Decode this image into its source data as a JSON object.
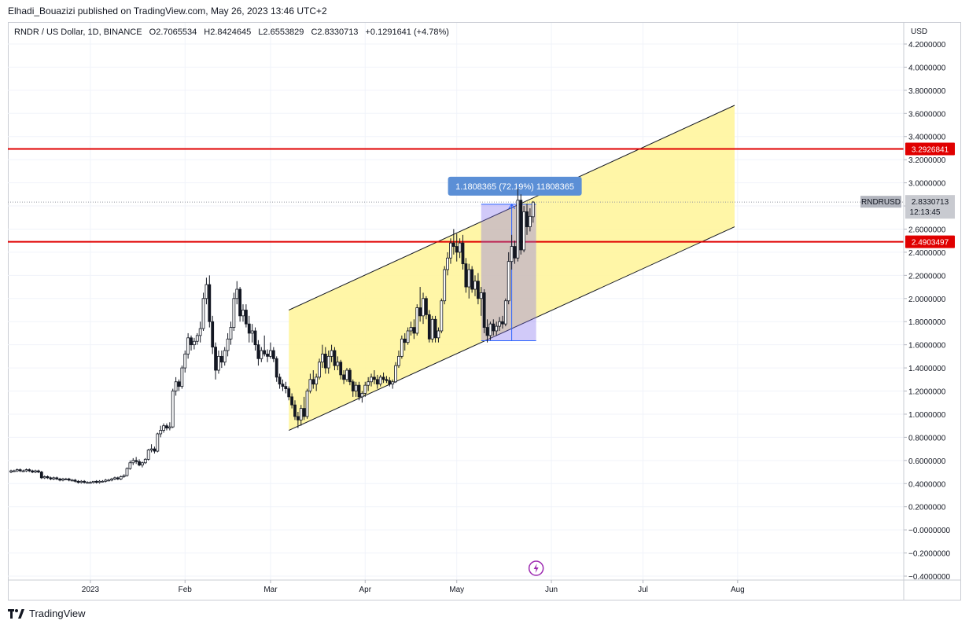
{
  "header": {
    "published_line": "Elhadi_Bouazizi published on TradingView.com, May 26, 2023 13:46 UTC+2"
  },
  "legend": {
    "symbol": "RNDR / US Dollar, 1D, BINANCE",
    "open": "O2.7065534",
    "high": "H2.8424645",
    "low": "L2.6553829",
    "close": "C2.8330713",
    "change": "+0.1291641 (+4.78%)"
  },
  "footer": {
    "brand": "TradingView"
  },
  "chart_data": {
    "type": "candlestick",
    "currency_label": "USD",
    "y_axis_labels": [
      "4.2000000",
      "4.0000000",
      "3.8000000",
      "3.6000000",
      "3.4000000",
      "3.2000000",
      "3.0000000",
      "2.8000000",
      "2.6000000",
      "2.4000000",
      "2.2000000",
      "2.0000000",
      "1.8000000",
      "1.6000000",
      "1.4000000",
      "1.2000000",
      "1.0000000",
      "0.8000000",
      "0.6000000",
      "0.4000000",
      "0.2000000",
      "−0.0000000",
      "−0.2000000",
      "−0.4000000"
    ],
    "y_axis_values": [
      4.2,
      4.0,
      3.8,
      3.6,
      3.4,
      3.2,
      3.0,
      2.8,
      2.6,
      2.4,
      2.2,
      2.0,
      1.8,
      1.6,
      1.4,
      1.2,
      1.0,
      0.8,
      0.6,
      0.4,
      0.2,
      0.0,
      -0.2,
      -0.4
    ],
    "x_axis_labels": [
      "2023",
      "Feb",
      "Mar",
      "Apr",
      "May",
      "Jun",
      "Jul",
      "Aug"
    ],
    "x_axis_dates": [
      "2023-01-01",
      "2023-02-01",
      "2023-03-01",
      "2023-04-01",
      "2023-05-01",
      "2023-06-01",
      "2023-07-01",
      "2023-08-01"
    ],
    "range": {
      "start": "2022-12-06",
      "end": "2023-08-25",
      "ymin": -0.4,
      "ymax": 4.25
    },
    "horizontal_lines": [
      {
        "value": 3.2926841,
        "label": "3.2926841",
        "color": "#e00000"
      },
      {
        "value": 2.4903497,
        "label": "2.4903497",
        "color": "#e00000"
      }
    ],
    "last_price": {
      "value": 2.8330713,
      "label": "2.8330713",
      "symbol_tag": "RNDRUSD",
      "countdown": "12:13:45"
    },
    "channel": {
      "start_date": "2023-03-07",
      "end_date": "2023-07-31",
      "upper_start": 1.9,
      "upper_end": 3.67,
      "lower_start": 0.86,
      "lower_end": 2.62,
      "fill": "#fff59d"
    },
    "measure": {
      "start_date": "2023-05-09",
      "end_date": "2023-05-27",
      "low": 1.635,
      "high": 2.815,
      "label": "1.1808365 (72.19%) 11808365",
      "arrow_date": "2023-05-19"
    },
    "annotation_icon": "lightning-icon",
    "candles": [
      [
        "2022-12-06",
        0.5,
        0.52,
        0.49,
        0.51
      ],
      [
        "2022-12-07",
        0.51,
        0.52,
        0.5,
        0.51
      ],
      [
        "2022-12-08",
        0.51,
        0.53,
        0.5,
        0.52
      ],
      [
        "2022-12-09",
        0.52,
        0.53,
        0.5,
        0.51
      ],
      [
        "2022-12-10",
        0.51,
        0.52,
        0.5,
        0.51
      ],
      [
        "2022-12-11",
        0.51,
        0.53,
        0.5,
        0.52
      ],
      [
        "2022-12-12",
        0.52,
        0.53,
        0.5,
        0.51
      ],
      [
        "2022-12-13",
        0.51,
        0.52,
        0.49,
        0.5
      ],
      [
        "2022-12-14",
        0.5,
        0.52,
        0.49,
        0.51
      ],
      [
        "2022-12-15",
        0.51,
        0.52,
        0.49,
        0.5
      ],
      [
        "2022-12-16",
        0.5,
        0.51,
        0.44,
        0.45
      ],
      [
        "2022-12-17",
        0.45,
        0.47,
        0.44,
        0.46
      ],
      [
        "2022-12-18",
        0.46,
        0.47,
        0.44,
        0.45
      ],
      [
        "2022-12-19",
        0.45,
        0.46,
        0.43,
        0.44
      ],
      [
        "2022-12-20",
        0.44,
        0.46,
        0.43,
        0.45
      ],
      [
        "2022-12-21",
        0.45,
        0.46,
        0.43,
        0.44
      ],
      [
        "2022-12-22",
        0.44,
        0.45,
        0.42,
        0.43
      ],
      [
        "2022-12-23",
        0.43,
        0.45,
        0.42,
        0.44
      ],
      [
        "2022-12-24",
        0.44,
        0.45,
        0.43,
        0.44
      ],
      [
        "2022-12-25",
        0.44,
        0.45,
        0.42,
        0.43
      ],
      [
        "2022-12-26",
        0.43,
        0.44,
        0.42,
        0.43
      ],
      [
        "2022-12-27",
        0.43,
        0.44,
        0.41,
        0.42
      ],
      [
        "2022-12-28",
        0.42,
        0.43,
        0.4,
        0.41
      ],
      [
        "2022-12-29",
        0.41,
        0.43,
        0.4,
        0.42
      ],
      [
        "2022-12-30",
        0.42,
        0.43,
        0.4,
        0.41
      ],
      [
        "2022-12-31",
        0.41,
        0.42,
        0.4,
        0.41
      ],
      [
        "2023-01-01",
        0.41,
        0.42,
        0.4,
        0.41
      ],
      [
        "2023-01-02",
        0.41,
        0.42,
        0.4,
        0.42
      ],
      [
        "2023-01-03",
        0.42,
        0.43,
        0.4,
        0.41
      ],
      [
        "2023-01-04",
        0.41,
        0.43,
        0.4,
        0.42
      ],
      [
        "2023-01-05",
        0.42,
        0.43,
        0.41,
        0.42
      ],
      [
        "2023-01-06",
        0.42,
        0.44,
        0.41,
        0.43
      ],
      [
        "2023-01-07",
        0.43,
        0.44,
        0.42,
        0.43
      ],
      [
        "2023-01-08",
        0.43,
        0.45,
        0.42,
        0.44
      ],
      [
        "2023-01-09",
        0.44,
        0.46,
        0.43,
        0.45
      ],
      [
        "2023-01-10",
        0.45,
        0.46,
        0.43,
        0.44
      ],
      [
        "2023-01-11",
        0.44,
        0.47,
        0.43,
        0.46
      ],
      [
        "2023-01-12",
        0.46,
        0.48,
        0.45,
        0.47
      ],
      [
        "2023-01-13",
        0.47,
        0.54,
        0.46,
        0.53
      ],
      [
        "2023-01-14",
        0.53,
        0.6,
        0.52,
        0.58
      ],
      [
        "2023-01-15",
        0.58,
        0.62,
        0.56,
        0.6
      ],
      [
        "2023-01-16",
        0.6,
        0.63,
        0.57,
        0.59
      ],
      [
        "2023-01-17",
        0.59,
        0.61,
        0.55,
        0.56
      ],
      [
        "2023-01-18",
        0.56,
        0.59,
        0.54,
        0.58
      ],
      [
        "2023-01-19",
        0.58,
        0.62,
        0.57,
        0.61
      ],
      [
        "2023-01-20",
        0.61,
        0.7,
        0.6,
        0.69
      ],
      [
        "2023-01-21",
        0.69,
        0.74,
        0.67,
        0.7
      ],
      [
        "2023-01-22",
        0.7,
        0.72,
        0.66,
        0.68
      ],
      [
        "2023-01-23",
        0.68,
        0.84,
        0.67,
        0.83
      ],
      [
        "2023-01-24",
        0.83,
        0.9,
        0.8,
        0.86
      ],
      [
        "2023-01-25",
        0.86,
        0.92,
        0.84,
        0.9
      ],
      [
        "2023-01-26",
        0.9,
        0.92,
        0.86,
        0.88
      ],
      [
        "2023-01-27",
        0.88,
        0.93,
        0.86,
        0.89
      ],
      [
        "2023-01-28",
        0.89,
        1.22,
        0.88,
        1.2
      ],
      [
        "2023-01-29",
        1.2,
        1.32,
        1.16,
        1.28
      ],
      [
        "2023-01-30",
        1.28,
        1.3,
        1.2,
        1.24
      ],
      [
        "2023-01-31",
        1.24,
        1.42,
        1.22,
        1.4
      ],
      [
        "2023-02-01",
        1.4,
        1.55,
        1.36,
        1.52
      ],
      [
        "2023-02-02",
        1.52,
        1.7,
        1.48,
        1.66
      ],
      [
        "2023-02-03",
        1.66,
        1.68,
        1.55,
        1.6
      ],
      [
        "2023-02-04",
        1.6,
        1.66,
        1.56,
        1.63
      ],
      [
        "2023-02-05",
        1.63,
        1.7,
        1.6,
        1.68
      ],
      [
        "2023-02-06",
        1.68,
        1.8,
        1.62,
        1.74
      ],
      [
        "2023-02-07",
        1.74,
        2.05,
        1.72,
        2.0
      ],
      [
        "2023-02-08",
        2.0,
        2.18,
        1.95,
        2.12
      ],
      [
        "2023-02-09",
        2.12,
        2.2,
        1.75,
        1.8
      ],
      [
        "2023-02-10",
        1.8,
        1.85,
        1.52,
        1.58
      ],
      [
        "2023-02-11",
        1.58,
        1.62,
        1.3,
        1.38
      ],
      [
        "2023-02-12",
        1.38,
        1.55,
        1.35,
        1.5
      ],
      [
        "2023-02-13",
        1.5,
        1.55,
        1.4,
        1.45
      ],
      [
        "2023-02-14",
        1.45,
        1.58,
        1.42,
        1.55
      ],
      [
        "2023-02-15",
        1.55,
        1.7,
        1.5,
        1.65
      ],
      [
        "2023-02-16",
        1.65,
        1.8,
        1.6,
        1.75
      ],
      [
        "2023-02-17",
        1.75,
        2.05,
        1.72,
        2.0
      ],
      [
        "2023-02-18",
        2.0,
        2.15,
        1.95,
        2.08
      ],
      [
        "2023-02-19",
        2.08,
        2.1,
        1.8,
        1.85
      ],
      [
        "2023-02-20",
        1.85,
        1.95,
        1.8,
        1.9
      ],
      [
        "2023-02-21",
        1.9,
        1.95,
        1.75,
        1.78
      ],
      [
        "2023-02-22",
        1.78,
        1.85,
        1.62,
        1.7
      ],
      [
        "2023-02-23",
        1.7,
        1.78,
        1.62,
        1.72
      ],
      [
        "2023-02-24",
        1.72,
        1.75,
        1.55,
        1.6
      ],
      [
        "2023-02-25",
        1.6,
        1.64,
        1.42,
        1.48
      ],
      [
        "2023-02-26",
        1.48,
        1.58,
        1.45,
        1.55
      ],
      [
        "2023-02-27",
        1.55,
        1.68,
        1.5,
        1.52
      ],
      [
        "2023-02-28",
        1.52,
        1.56,
        1.45,
        1.5
      ],
      [
        "2023-03-01",
        1.5,
        1.62,
        1.48,
        1.55
      ],
      [
        "2023-03-02",
        1.55,
        1.58,
        1.45,
        1.48
      ],
      [
        "2023-03-03",
        1.48,
        1.5,
        1.28,
        1.32
      ],
      [
        "2023-03-04",
        1.32,
        1.35,
        1.22,
        1.26
      ],
      [
        "2023-03-05",
        1.26,
        1.3,
        1.2,
        1.24
      ],
      [
        "2023-03-06",
        1.24,
        1.28,
        1.18,
        1.22
      ],
      [
        "2023-03-07",
        1.22,
        1.24,
        1.12,
        1.15
      ],
      [
        "2023-03-08",
        1.15,
        1.18,
        1.05,
        1.08
      ],
      [
        "2023-03-09",
        1.08,
        1.12,
        0.95,
        0.98
      ],
      [
        "2023-03-10",
        0.98,
        1.02,
        0.88,
        0.95
      ],
      [
        "2023-03-11",
        0.95,
        1.08,
        0.9,
        1.05
      ],
      [
        "2023-03-12",
        1.05,
        1.15,
        0.95,
        0.98
      ],
      [
        "2023-03-13",
        0.98,
        1.22,
        0.96,
        1.2
      ],
      [
        "2023-03-14",
        1.2,
        1.35,
        1.18,
        1.3
      ],
      [
        "2023-03-15",
        1.3,
        1.38,
        1.22,
        1.26
      ],
      [
        "2023-03-16",
        1.26,
        1.35,
        1.2,
        1.32
      ],
      [
        "2023-03-17",
        1.32,
        1.48,
        1.3,
        1.45
      ],
      [
        "2023-03-18",
        1.45,
        1.6,
        1.4,
        1.52
      ],
      [
        "2023-03-19",
        1.52,
        1.58,
        1.35,
        1.4
      ],
      [
        "2023-03-20",
        1.4,
        1.55,
        1.35,
        1.5
      ],
      [
        "2023-03-21",
        1.5,
        1.6,
        1.45,
        1.55
      ],
      [
        "2023-03-22",
        1.55,
        1.58,
        1.38,
        1.42
      ],
      [
        "2023-03-23",
        1.42,
        1.5,
        1.38,
        1.45
      ],
      [
        "2023-03-24",
        1.45,
        1.47,
        1.3,
        1.34
      ],
      [
        "2023-03-25",
        1.34,
        1.38,
        1.26,
        1.3
      ],
      [
        "2023-03-26",
        1.3,
        1.4,
        1.28,
        1.38
      ],
      [
        "2023-03-27",
        1.38,
        1.4,
        1.25,
        1.28
      ],
      [
        "2023-03-28",
        1.28,
        1.3,
        1.15,
        1.2
      ],
      [
        "2023-03-29",
        1.2,
        1.28,
        1.15,
        1.25
      ],
      [
        "2023-03-30",
        1.25,
        1.28,
        1.12,
        1.15
      ],
      [
        "2023-03-31",
        1.15,
        1.2,
        1.1,
        1.18
      ],
      [
        "2023-04-01",
        1.18,
        1.28,
        1.15,
        1.25
      ],
      [
        "2023-04-02",
        1.25,
        1.32,
        1.2,
        1.28
      ],
      [
        "2023-04-03",
        1.28,
        1.35,
        1.24,
        1.32
      ],
      [
        "2023-04-04",
        1.32,
        1.38,
        1.26,
        1.3
      ],
      [
        "2023-04-05",
        1.3,
        1.34,
        1.22,
        1.26
      ],
      [
        "2023-04-06",
        1.26,
        1.34,
        1.24,
        1.32
      ],
      [
        "2023-04-07",
        1.32,
        1.36,
        1.27,
        1.3
      ],
      [
        "2023-04-08",
        1.3,
        1.33,
        1.27,
        1.29
      ],
      [
        "2023-04-09",
        1.29,
        1.32,
        1.24,
        1.26
      ],
      [
        "2023-04-10",
        1.26,
        1.3,
        1.22,
        1.28
      ],
      [
        "2023-04-11",
        1.28,
        1.45,
        1.27,
        1.42
      ],
      [
        "2023-04-12",
        1.42,
        1.55,
        1.4,
        1.5
      ],
      [
        "2023-04-13",
        1.5,
        1.68,
        1.48,
        1.65
      ],
      [
        "2023-04-14",
        1.65,
        1.7,
        1.55,
        1.62
      ],
      [
        "2023-04-15",
        1.62,
        1.75,
        1.6,
        1.72
      ],
      [
        "2023-04-16",
        1.72,
        1.8,
        1.68,
        1.75
      ],
      [
        "2023-04-17",
        1.75,
        1.82,
        1.65,
        1.7
      ],
      [
        "2023-04-18",
        1.7,
        1.95,
        1.68,
        1.92
      ],
      [
        "2023-04-19",
        1.92,
        2.1,
        1.8,
        1.85
      ],
      [
        "2023-04-20",
        1.85,
        2.05,
        1.78,
        2.0
      ],
      [
        "2023-04-21",
        2.0,
        2.02,
        1.82,
        1.86
      ],
      [
        "2023-04-22",
        1.86,
        1.9,
        1.62,
        1.65
      ],
      [
        "2023-04-23",
        1.65,
        1.85,
        1.62,
        1.82
      ],
      [
        "2023-04-24",
        1.82,
        1.85,
        1.62,
        1.66
      ],
      [
        "2023-04-25",
        1.66,
        1.75,
        1.62,
        1.72
      ],
      [
        "2023-04-26",
        1.72,
        2.0,
        1.7,
        1.98
      ],
      [
        "2023-04-27",
        1.98,
        2.28,
        1.95,
        2.25
      ],
      [
        "2023-04-28",
        2.25,
        2.4,
        2.2,
        2.35
      ],
      [
        "2023-04-29",
        2.35,
        2.52,
        2.3,
        2.48
      ],
      [
        "2023-04-30",
        2.48,
        2.6,
        2.38,
        2.45
      ],
      [
        "2023-05-01",
        2.45,
        2.56,
        2.32,
        2.4
      ],
      [
        "2023-05-02",
        2.4,
        2.52,
        2.35,
        2.48
      ],
      [
        "2023-05-03",
        2.48,
        2.55,
        2.25,
        2.3
      ],
      [
        "2023-05-04",
        2.3,
        2.35,
        2.05,
        2.1
      ],
      [
        "2023-05-05",
        2.1,
        2.3,
        2.0,
        2.25
      ],
      [
        "2023-05-06",
        2.25,
        2.28,
        2.05,
        2.08
      ],
      [
        "2023-05-07",
        2.08,
        2.2,
        2.02,
        2.15
      ],
      [
        "2023-05-08",
        2.15,
        2.22,
        1.95,
        2.0
      ],
      [
        "2023-05-09",
        2.0,
        2.1,
        1.85,
        2.05
      ],
      [
        "2023-05-10",
        2.05,
        2.08,
        1.7,
        1.75
      ],
      [
        "2023-05-11",
        1.75,
        1.82,
        1.62,
        1.68
      ],
      [
        "2023-05-12",
        1.68,
        1.8,
        1.64,
        1.78
      ],
      [
        "2023-05-13",
        1.78,
        1.82,
        1.68,
        1.72
      ],
      [
        "2023-05-14",
        1.72,
        1.8,
        1.68,
        1.76
      ],
      [
        "2023-05-15",
        1.76,
        1.84,
        1.72,
        1.8
      ],
      [
        "2023-05-16",
        1.8,
        1.85,
        1.74,
        1.78
      ],
      [
        "2023-05-17",
        1.78,
        2.0,
        1.76,
        1.98
      ],
      [
        "2023-05-18",
        1.98,
        2.4,
        1.95,
        2.32
      ],
      [
        "2023-05-19",
        2.32,
        2.55,
        2.25,
        2.45
      ],
      [
        "2023-05-20",
        2.45,
        2.5,
        2.3,
        2.35
      ],
      [
        "2023-05-21",
        2.35,
        2.95,
        2.32,
        2.85
      ],
      [
        "2023-05-22",
        2.85,
        2.9,
        2.38,
        2.42
      ],
      [
        "2023-05-23",
        2.42,
        2.8,
        2.4,
        2.75
      ],
      [
        "2023-05-24",
        2.75,
        2.82,
        2.55,
        2.62
      ],
      [
        "2023-05-25",
        2.62,
        2.78,
        2.58,
        2.71
      ],
      [
        "2023-05-26",
        2.7065534,
        2.8424645,
        2.6553829,
        2.8330713
      ]
    ]
  }
}
